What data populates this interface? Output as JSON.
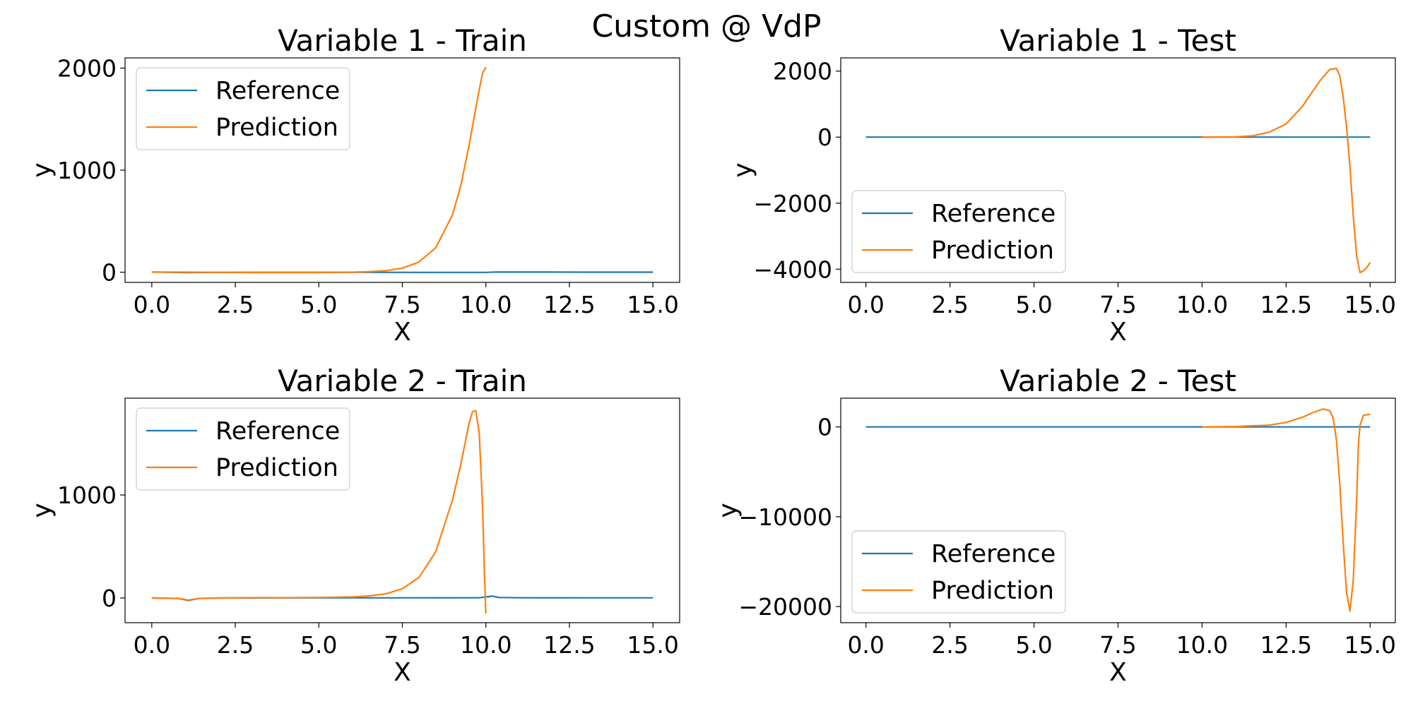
{
  "figure": {
    "suptitle": "Custom @ VdP",
    "series_colors": {
      "Reference": "#1f77b4",
      "Prediction": "#ff7f0e"
    }
  },
  "chart_data": [
    {
      "type": "line",
      "title": "Variable 1 - Train",
      "xlabel": "X",
      "ylabel": "y",
      "xlim": [
        -0.8,
        15.8
      ],
      "ylim": [
        -100,
        2100
      ],
      "xticks": [
        0.0,
        2.5,
        5.0,
        7.5,
        10.0,
        12.5,
        15.0
      ],
      "xtick_labels": [
        "0.0",
        "2.5",
        "5.0",
        "7.5",
        "10.0",
        "12.5",
        "15.0"
      ],
      "yticks": [
        0,
        1000,
        2000
      ],
      "ytick_labels": [
        "0",
        "1000",
        "2000"
      ],
      "legend": {
        "position": "upper-left",
        "entries": [
          "Reference",
          "Prediction"
        ]
      },
      "series": [
        {
          "name": "Reference",
          "color": "#1f77b4",
          "x": [
            0,
            1,
            2,
            4,
            6,
            8,
            9.5,
            10,
            10.3,
            11,
            12,
            13,
            14,
            15
          ],
          "y": [
            2,
            -3,
            -2,
            -1,
            -1,
            -2,
            -2,
            -2,
            2,
            1,
            1,
            0,
            0,
            0
          ]
        },
        {
          "name": "Prediction",
          "color": "#ff7f0e",
          "x": [
            0,
            1,
            2,
            3,
            4,
            5,
            6,
            6.5,
            7,
            7.5,
            8,
            8.5,
            9,
            9.25,
            9.5,
            9.75,
            9.9,
            10
          ],
          "y": [
            2,
            0,
            -2,
            -3,
            -3,
            -3,
            0,
            5,
            15,
            40,
            100,
            240,
            560,
            850,
            1250,
            1700,
            1950,
            2010
          ]
        }
      ]
    },
    {
      "type": "line",
      "title": "Variable 1 - Test",
      "xlabel": "X",
      "ylabel": "y",
      "xlim": [
        -0.75,
        15.75
      ],
      "ylim": [
        -4400,
        2400
      ],
      "xticks": [
        0.0,
        2.5,
        5.0,
        7.5,
        10.0,
        12.5,
        15.0
      ],
      "xtick_labels": [
        "0.0",
        "2.5",
        "5.0",
        "7.5",
        "10.0",
        "12.5",
        "15.0"
      ],
      "yticks": [
        2000,
        0,
        -2000,
        -4000
      ],
      "ytick_labels": [
        "2000",
        "0",
        "−2000",
        "−4000"
      ],
      "legend": {
        "position": "lower-left",
        "entries": [
          "Reference",
          "Prediction"
        ]
      },
      "series": [
        {
          "name": "Reference",
          "color": "#1f77b4",
          "x": [
            0,
            5,
            10,
            15
          ],
          "y": [
            0,
            0,
            0,
            0
          ]
        },
        {
          "name": "Prediction",
          "color": "#ff7f0e",
          "x": [
            10,
            11,
            11.5,
            12,
            12.5,
            13,
            13.5,
            13.8,
            14,
            14.1,
            14.2,
            14.3,
            14.4,
            14.5,
            14.6,
            14.7,
            14.8,
            14.9,
            15
          ],
          "y": [
            0,
            10,
            40,
            150,
            400,
            950,
            1700,
            2050,
            2080,
            1850,
            1200,
            300,
            -900,
            -2400,
            -3600,
            -4100,
            -4050,
            -3950,
            -3800
          ]
        }
      ]
    },
    {
      "type": "line",
      "title": "Variable 2 - Train",
      "xlabel": "X",
      "ylabel": "y",
      "xlim": [
        -0.8,
        15.8
      ],
      "ylim": [
        -240,
        1940
      ],
      "xticks": [
        0.0,
        2.5,
        5.0,
        7.5,
        10.0,
        12.5,
        15.0
      ],
      "xtick_labels": [
        "0.0",
        "2.5",
        "5.0",
        "7.5",
        "10.0",
        "12.5",
        "15.0"
      ],
      "yticks": [
        0,
        1000
      ],
      "ytick_labels": [
        "0",
        "1000"
      ],
      "legend": {
        "position": "upper-left",
        "entries": [
          "Reference",
          "Prediction"
        ]
      },
      "series": [
        {
          "name": "Reference",
          "color": "#1f77b4",
          "x": [
            0,
            0.8,
            1.1,
            1.4,
            2,
            4,
            6,
            8,
            9.8,
            10,
            10.2,
            10.4,
            11,
            13,
            15
          ],
          "y": [
            0,
            -5,
            -25,
            -5,
            0,
            1,
            1,
            1,
            2,
            10,
            18,
            5,
            2,
            1,
            1
          ]
        },
        {
          "name": "Prediction",
          "color": "#ff7f0e",
          "x": [
            0,
            0.8,
            1.1,
            1.4,
            2,
            3,
            4,
            5,
            6,
            6.5,
            7,
            7.5,
            8,
            8.5,
            9,
            9.25,
            9.5,
            9.6,
            9.7,
            9.8,
            9.9,
            9.95,
            10
          ],
          "y": [
            0,
            -5,
            -20,
            -5,
            0,
            2,
            3,
            5,
            10,
            20,
            40,
            90,
            200,
            450,
            950,
            1300,
            1700,
            1810,
            1820,
            1600,
            900,
            300,
            -150
          ]
        }
      ]
    },
    {
      "type": "line",
      "title": "Variable 2 - Test",
      "xlabel": "X",
      "ylabel": "y",
      "xlim": [
        -0.75,
        15.75
      ],
      "ylim": [
        -21800,
        3200
      ],
      "xticks": [
        0.0,
        2.5,
        5.0,
        7.5,
        10.0,
        12.5,
        15.0
      ],
      "xtick_labels": [
        "0.0",
        "2.5",
        "5.0",
        "7.5",
        "10.0",
        "12.5",
        "15.0"
      ],
      "yticks": [
        0,
        -10000,
        -20000
      ],
      "ytick_labels": [
        "0",
        "−10000",
        "−20000"
      ],
      "legend": {
        "position": "lower-left",
        "entries": [
          "Reference",
          "Prediction"
        ]
      },
      "series": [
        {
          "name": "Reference",
          "color": "#1f77b4",
          "x": [
            0,
            5,
            10,
            15
          ],
          "y": [
            0,
            0,
            0,
            0
          ]
        },
        {
          "name": "Prediction",
          "color": "#ff7f0e",
          "x": [
            10,
            11,
            12,
            12.5,
            13,
            13.3,
            13.6,
            13.8,
            13.9,
            14,
            14.1,
            14.2,
            14.3,
            14.4,
            14.5,
            14.6,
            14.65,
            14.7,
            14.8,
            15
          ],
          "y": [
            0,
            50,
            200,
            500,
            1100,
            1600,
            2000,
            1800,
            1000,
            -1500,
            -6500,
            -13000,
            -18500,
            -20500,
            -17000,
            -8000,
            -2000,
            200,
            1300,
            1400
          ]
        }
      ]
    }
  ]
}
